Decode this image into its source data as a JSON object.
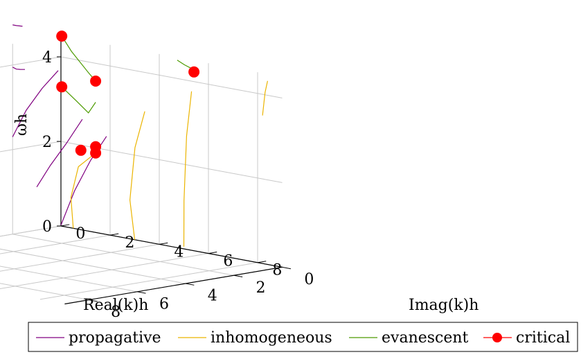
{
  "chart_data": {
    "type": "line",
    "projection": "3d",
    "title": "",
    "axes": {
      "real": {
        "label": "Real(k)h",
        "ticks": [
          "0",
          "2",
          "4",
          "6",
          "8"
        ],
        "range": [
          0,
          9
        ]
      },
      "imag": {
        "label": "Imag(k)h",
        "ticks": [
          "0",
          "2",
          "4",
          "6",
          "8"
        ],
        "range": [
          0,
          9
        ]
      },
      "omega": {
        "label": "ωh",
        "ticks": [
          "0",
          "2",
          "4"
        ],
        "range": [
          0,
          4.5
        ]
      }
    },
    "grid": true,
    "legend": {
      "position": "bottom",
      "entries": [
        {
          "key": "propagative",
          "label": "propagative"
        },
        {
          "key": "inhomogeneous",
          "label": "inhomogeneous"
        },
        {
          "key": "evanescent",
          "label": "evanescent"
        },
        {
          "key": "critical",
          "label": "critical"
        }
      ]
    },
    "colors": {
      "propagative": "#800080",
      "inhomogeneous": "#ebb400",
      "evanescent": "#4c9a00",
      "critical": "#ff0000"
    },
    "series": [
      {
        "name": "propagative",
        "segments": [
          {
            "points": [
              [
                0,
                0.0,
                0.02
              ],
              [
                0.6,
                0.05,
                0.9
              ],
              [
                1.3,
                0.1,
                1.7
              ],
              [
                2.0,
                0.15,
                2.35
              ]
            ]
          },
          {
            "points": [
              [
                0,
                1.0,
                1.02
              ],
              [
                0.6,
                1.05,
                1.6
              ],
              [
                1.3,
                1.1,
                2.2
              ],
              [
                2.0,
                1.15,
                2.85
              ]
            ]
          },
          {
            "points": [
              [
                0,
                2.0,
                2.3
              ],
              [
                0.6,
                2.05,
                3.0
              ],
              [
                1.3,
                2.1,
                3.6
              ],
              [
                2.0,
                2.15,
                4.1
              ]
            ]
          },
          {
            "points": [
              [
                0,
                2.0,
                3.95
              ],
              [
                0.2,
                2.05,
                3.93
              ],
              [
                0.4,
                2.1,
                3.95
              ],
              [
                0.6,
                2.1,
                3.97
              ]
            ]
          },
          {
            "points": [
              [
                0,
                2.0,
                4.95
              ],
              [
                0.2,
                2.05,
                4.96
              ],
              [
                0.5,
                2.1,
                4.98
              ]
            ]
          }
        ]
      },
      {
        "name": "inhomogeneous",
        "segments": [
          {
            "points": [
              [
                0.5,
                0,
                0.0
              ],
              [
                0.8,
                0.4,
                0.8
              ],
              [
                1.3,
                0.6,
                1.6
              ],
              [
                2.0,
                0.6,
                2.0
              ]
            ]
          },
          {
            "points": [
              [
                3.0,
                0,
                0.0
              ],
              [
                3.2,
                0.4,
                1.0
              ],
              [
                3.6,
                0.6,
                2.3
              ],
              [
                4.0,
                0.6,
                3.2
              ]
            ]
          },
          {
            "points": [
              [
                5.0,
                0,
                0.05
              ],
              [
                5.3,
                0.3,
                1.2
              ],
              [
                5.7,
                0.6,
                2.8
              ],
              [
                6.0,
                0.7,
                3.9
              ]
            ]
          },
          {
            "points": [
              [
                8.2,
                0,
                3.5
              ],
              [
                8.5,
                0.2,
                4.1
              ],
              [
                8.7,
                0.3,
                4.4
              ]
            ]
          }
        ]
      },
      {
        "name": "evanescent",
        "segments": [
          {
            "points": [
              [
                2.0,
                0.6,
                3.2
              ],
              [
                2.1,
                1.0,
                3.0
              ],
              [
                2.2,
                1.6,
                3.35
              ],
              [
                2.0,
                2.0,
                3.7
              ]
            ]
          },
          {
            "points": [
              [
                2.0,
                0.6,
                3.7
              ],
              [
                2.1,
                1.0,
                3.95
              ],
              [
                2.0,
                1.6,
                4.5
              ],
              [
                2.0,
                2.0,
                4.9
              ]
            ]
          },
          {
            "points": [
              [
                6.0,
                0.6,
                4.4
              ],
              [
                6.2,
                1.2,
                4.6
              ],
              [
                6.5,
                1.8,
                4.8
              ]
            ]
          }
        ]
      },
      {
        "name": "critical",
        "points": [
          [
            2.0,
            0.6,
            2.0
          ],
          [
            2.0,
            0.6,
            2.15
          ],
          [
            1.4,
            0.6,
            2.0
          ],
          [
            2.0,
            0.6,
            3.7
          ],
          [
            2.0,
            2.0,
            3.7
          ],
          [
            6.0,
            0.6,
            4.35
          ],
          [
            2.0,
            2.0,
            4.9
          ]
        ]
      }
    ]
  }
}
